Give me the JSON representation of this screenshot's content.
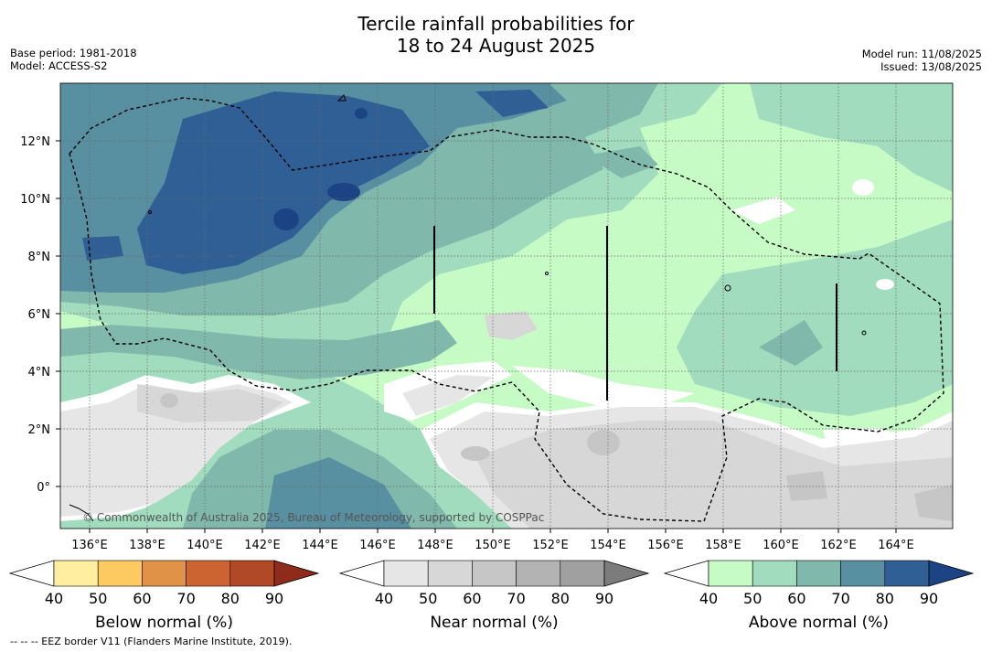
{
  "title": {
    "line1": "Tercile rainfall probabilities for",
    "line2": "18 to 24 August 2025"
  },
  "meta_left": {
    "base_period": "Base period: 1981-2018",
    "model": "Model: ACCESS-S2"
  },
  "meta_right": {
    "model_run": "Model run: 11/08/2025",
    "issued": "Issued: 13/08/2025"
  },
  "map": {
    "lon_ticks": [
      "136°E",
      "138°E",
      "140°E",
      "142°E",
      "144°E",
      "146°E",
      "148°E",
      "150°E",
      "152°E",
      "154°E",
      "156°E",
      "158°E",
      "160°E",
      "162°E",
      "164°E"
    ],
    "lat_ticks": [
      "12°N",
      "10°N",
      "8°N",
      "6°N",
      "4°N",
      "2°N",
      "0°"
    ],
    "copyright": "© Commonwealth of Australia 2025, Bureau of Meteorology, supported by COSPPac"
  },
  "colorbars": [
    {
      "name": "below-normal",
      "title": "Below normal (%)",
      "ticks": [
        "40",
        "50",
        "60",
        "70",
        "80",
        "90"
      ],
      "colors": [
        "#ffeea0",
        "#fdca62",
        "#e09246",
        "#cc6432",
        "#b14826"
      ],
      "extend_color": "#8e2b1a"
    },
    {
      "name": "near-normal",
      "title": "Near normal (%)",
      "ticks": [
        "40",
        "50",
        "60",
        "70",
        "80",
        "90"
      ],
      "colors": [
        "#e6e6e6",
        "#d7d7d7",
        "#c6c6c6",
        "#b3b3b3",
        "#a0a0a0"
      ],
      "extend_color": "#7c7c7c"
    },
    {
      "name": "above-normal",
      "title": "Above normal (%)",
      "ticks": [
        "40",
        "50",
        "60",
        "70",
        "80",
        "90"
      ],
      "colors": [
        "#c6fbc6",
        "#a0dcbd",
        "#81b8ac",
        "#588fa1",
        "#305f96"
      ],
      "extend_color": "#1c4484"
    }
  ],
  "footnote": "--  --  -- EEZ border V11 (Flanders Marine Institute, 2019)."
}
